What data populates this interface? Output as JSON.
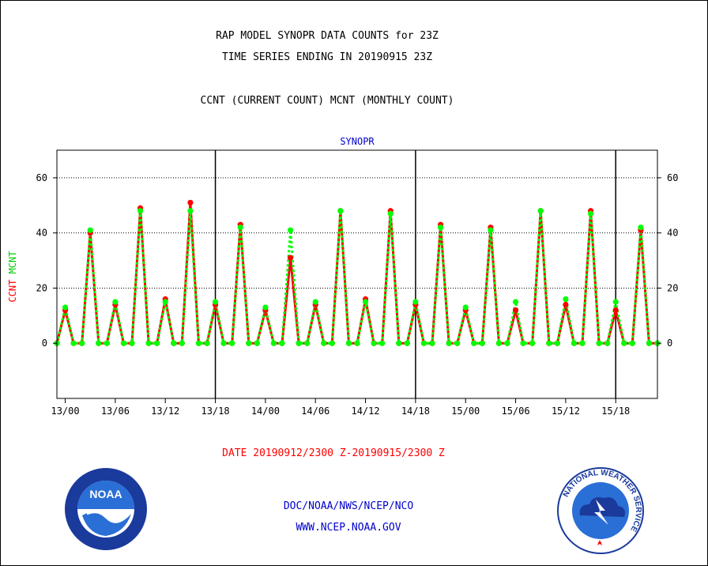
{
  "header": {
    "title_line1": "RAP MODEL SYNOPR DATA COUNTS for 23Z",
    "title_line2": "TIME SERIES ENDING IN 20190915 23Z",
    "subtitle": "CCNT (CURRENT COUNT) MCNT (MONTHLY COUNT)"
  },
  "footer": {
    "date_range": "DATE 20190912/2300 Z-20190915/2300 Z",
    "org_path": "DOC/NOAA/NWS/NCEP/NCO",
    "website": "WWW.NCEP.NOAA.GOV"
  },
  "logos": {
    "noaa_text": "NOAA",
    "nws_ring_text": "NATIONAL WEATHER SERVICE"
  },
  "colors": {
    "ccnt": "#ff0000",
    "mcnt": "#00ff00",
    "panel_label": "#0000cc",
    "footer_blue": "#0000cc",
    "footer_red": "#ff0000",
    "grid": "#000000"
  },
  "chart_data": {
    "type": "line",
    "panel_label": "SYNOPR",
    "ylabel_ccnt": "CCNT",
    "ylabel_mcnt": "MCNT",
    "ylim": [
      -20,
      70
    ],
    "yticks": [
      0,
      20,
      40,
      60
    ],
    "xticks": [
      "13/00",
      "13/06",
      "13/12",
      "13/18",
      "14/00",
      "14/06",
      "14/12",
      "14/18",
      "15/00",
      "15/06",
      "15/12",
      "15/18"
    ],
    "xtick_hours": [
      1,
      7,
      13,
      19,
      25,
      31,
      37,
      43,
      49,
      55,
      61,
      67
    ],
    "xlim_hours": [
      0,
      72
    ],
    "day_boundary_hours": [
      19,
      43,
      67
    ],
    "grid": "horizontal dotted at 20, 40, 60",
    "x_hours": [
      0,
      1,
      2,
      3,
      4,
      5,
      6,
      7,
      8,
      9,
      10,
      11,
      12,
      13,
      14,
      15,
      16,
      17,
      18,
      19,
      20,
      21,
      22,
      23,
      24,
      25,
      26,
      27,
      28,
      29,
      30,
      31,
      32,
      33,
      34,
      35,
      36,
      37,
      38,
      39,
      40,
      41,
      42,
      43,
      44,
      45,
      46,
      47,
      48,
      49,
      50,
      51,
      52,
      53,
      54,
      55,
      55.9,
      57,
      58,
      59,
      60,
      61,
      62,
      63,
      64,
      65,
      66,
      67,
      68,
      69,
      70,
      71,
      72
    ],
    "series": [
      {
        "name": "CCNT",
        "color": "#ff0000",
        "values": [
          0,
          12,
          0,
          0,
          40,
          0,
          0,
          14,
          0,
          0,
          49,
          0,
          0,
          16,
          0,
          0,
          51,
          0,
          0,
          14,
          0,
          0,
          43,
          0,
          0,
          12,
          0,
          0,
          31,
          0,
          0,
          14,
          0,
          0,
          48,
          0,
          0,
          16,
          0,
          0,
          48,
          0,
          0,
          14,
          0,
          0,
          43,
          0,
          0,
          12,
          0,
          0,
          42,
          0,
          0,
          12,
          0,
          0,
          48,
          0,
          0,
          14,
          0,
          0,
          48,
          0,
          0,
          12,
          0,
          0,
          41,
          0,
          0
        ]
      },
      {
        "name": "MCNT",
        "color": "#00ff00",
        "values": [
          0,
          13,
          0,
          0,
          41,
          0,
          0,
          15,
          0,
          0,
          48,
          0,
          0,
          15,
          0,
          0,
          48,
          0,
          0,
          15,
          0,
          0,
          42,
          0,
          0,
          13,
          0,
          0,
          41,
          0,
          0,
          15,
          0,
          0,
          48,
          0,
          0,
          15,
          0,
          0,
          47,
          0,
          0,
          15,
          0,
          0,
          42,
          0,
          0,
          13,
          0,
          0,
          41,
          0,
          0,
          15,
          0,
          0,
          48,
          0,
          0,
          16,
          0,
          0,
          47,
          0,
          0,
          15,
          0,
          0,
          42,
          0,
          0
        ]
      }
    ]
  }
}
